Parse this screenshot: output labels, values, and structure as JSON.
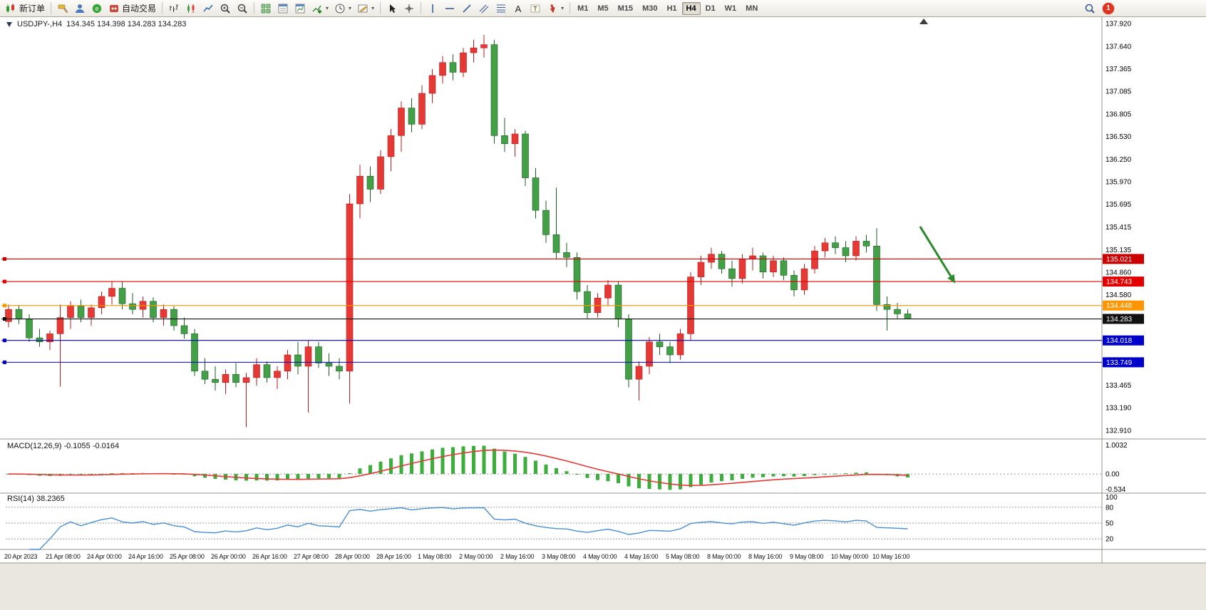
{
  "toolbar": {
    "groups": [
      [
        {
          "name": "new-order",
          "label": "新订单"
        }
      ],
      [
        {
          "name": "mql-wizard"
        },
        {
          "name": "support"
        },
        {
          "name": "community"
        },
        {
          "name": "autotrading",
          "label": "自动交易"
        }
      ],
      [
        {
          "name": "bar-chart"
        },
        {
          "name": "candlestick-chart"
        },
        {
          "name": "line-chart"
        },
        {
          "name": "zoom-in"
        },
        {
          "name": "zoom-out"
        }
      ],
      [
        {
          "name": "tile-windows"
        },
        {
          "name": "data-window"
        },
        {
          "name": "navigator"
        },
        {
          "name": "indicators",
          "dropdown": true
        },
        {
          "name": "periods",
          "dropdown": true
        },
        {
          "name": "templates",
          "dropdown": true
        }
      ],
      [
        {
          "name": "cursor"
        },
        {
          "name": "crosshair"
        }
      ],
      [
        {
          "name": "vertical-line"
        },
        {
          "name": "horizontal-line"
        },
        {
          "name": "trendline"
        },
        {
          "name": "equidistant-channel"
        },
        {
          "name": "fibonacci"
        },
        {
          "name": "text"
        },
        {
          "name": "text-label"
        },
        {
          "name": "arrows",
          "dropdown": true
        }
      ]
    ],
    "timeframes": [
      "M1",
      "M5",
      "M15",
      "M30",
      "H1",
      "H4",
      "D1",
      "W1",
      "MN"
    ],
    "active_timeframe": "H4",
    "notification_count": "1"
  },
  "chart": {
    "symbol_label": "USDJPY-,H4",
    "ohlc_values": "134.345 134.398 134.283 134.283"
  },
  "chart_data": {
    "type": "candlestick",
    "symbol": "USDJPY",
    "timeframe": "H4",
    "color_convention": "red = bullish, green = bearish",
    "up_color": "#e53935",
    "down_color": "#43a047",
    "up_stroke": "#b71c1c",
    "down_stroke": "#1b5e20",
    "price_axis_labels": [
      "137.920",
      "137.640",
      "137.365",
      "137.085",
      "136.805",
      "136.530",
      "136.250",
      "135.970",
      "135.695",
      "135.415",
      "135.135",
      "134.860",
      "134.580",
      "134.305",
      "134.025",
      "133.745",
      "133.465",
      "133.190",
      "132.910"
    ],
    "time_axis_labels": [
      "20 Apr 2023",
      "21 Apr 08:00",
      "24 Apr 00:00",
      "24 Apr 16:00",
      "25 Apr 08:00",
      "26 Apr 00:00",
      "26 Apr 16:00",
      "27 Apr 08:00",
      "28 Apr 00:00",
      "28 Apr 16:00",
      "1 May 08:00",
      "2 May 00:00",
      "2 May 16:00",
      "3 May 08:00",
      "4 May 00:00",
      "4 May 16:00",
      "5 May 08:00",
      "8 May 00:00",
      "8 May 16:00",
      "9 May 08:00",
      "10 May 00:00",
      "10 May 16:00"
    ],
    "candles_ohlc": [
      [
        134.25,
        134.46,
        134.18,
        134.4
      ],
      [
        134.4,
        134.45,
        134.22,
        134.28
      ],
      [
        134.28,
        134.34,
        134.0,
        134.05
      ],
      [
        134.05,
        134.16,
        133.94,
        134.0
      ],
      [
        134.0,
        134.14,
        133.9,
        134.1
      ],
      [
        134.1,
        134.46,
        133.45,
        134.3
      ],
      [
        134.3,
        134.5,
        134.16,
        134.44
      ],
      [
        134.44,
        134.52,
        134.24,
        134.3
      ],
      [
        134.3,
        134.46,
        134.2,
        134.42
      ],
      [
        134.42,
        134.62,
        134.34,
        134.56
      ],
      [
        134.56,
        134.75,
        134.46,
        134.66
      ],
      [
        134.66,
        134.74,
        134.4,
        134.47
      ],
      [
        134.47,
        134.6,
        134.34,
        134.4
      ],
      [
        134.4,
        134.56,
        134.3,
        134.5
      ],
      [
        134.5,
        134.55,
        134.24,
        134.3
      ],
      [
        134.3,
        134.46,
        134.2,
        134.4
      ],
      [
        134.4,
        134.44,
        134.14,
        134.2
      ],
      [
        134.2,
        134.3,
        134.04,
        134.1
      ],
      [
        134.1,
        134.16,
        133.58,
        133.64
      ],
      [
        133.64,
        133.8,
        133.48,
        133.54
      ],
      [
        133.54,
        133.7,
        133.4,
        133.5
      ],
      [
        133.5,
        133.66,
        133.36,
        133.6
      ],
      [
        133.6,
        133.74,
        133.44,
        133.5
      ],
      [
        133.5,
        133.62,
        132.95,
        133.56
      ],
      [
        133.56,
        133.8,
        133.46,
        133.72
      ],
      [
        133.72,
        133.76,
        133.5,
        133.56
      ],
      [
        133.56,
        133.7,
        133.42,
        133.64
      ],
      [
        133.64,
        133.9,
        133.54,
        133.84
      ],
      [
        133.84,
        134.0,
        133.6,
        133.7
      ],
      [
        133.7,
        134.02,
        133.13,
        133.94
      ],
      [
        133.94,
        134.0,
        133.68,
        133.74
      ],
      [
        133.74,
        133.86,
        133.58,
        133.7
      ],
      [
        133.7,
        133.8,
        133.54,
        133.64
      ],
      [
        133.64,
        135.82,
        133.24,
        135.7
      ],
      [
        135.7,
        136.18,
        135.52,
        136.04
      ],
      [
        136.04,
        136.16,
        135.72,
        135.88
      ],
      [
        135.88,
        136.36,
        135.82,
        136.28
      ],
      [
        136.28,
        136.62,
        136.1,
        136.54
      ],
      [
        136.54,
        136.96,
        136.34,
        136.88
      ],
      [
        136.88,
        137.0,
        136.58,
        136.68
      ],
      [
        136.68,
        137.16,
        136.62,
        137.06
      ],
      [
        137.06,
        137.36,
        136.94,
        137.28
      ],
      [
        137.28,
        137.52,
        137.18,
        137.44
      ],
      [
        137.44,
        137.54,
        137.22,
        137.32
      ],
      [
        137.32,
        137.62,
        137.26,
        137.56
      ],
      [
        137.56,
        137.72,
        137.44,
        137.62
      ],
      [
        137.62,
        137.78,
        137.5,
        137.66
      ],
      [
        137.66,
        137.72,
        136.44,
        136.54
      ],
      [
        136.54,
        136.76,
        136.34,
        136.44
      ],
      [
        136.44,
        136.62,
        136.28,
        136.56
      ],
      [
        136.56,
        136.6,
        135.92,
        136.02
      ],
      [
        136.02,
        136.14,
        135.52,
        135.62
      ],
      [
        135.62,
        135.74,
        135.22,
        135.32
      ],
      [
        135.32,
        135.9,
        135.02,
        135.1
      ],
      [
        135.1,
        135.22,
        134.92,
        135.04
      ],
      [
        135.04,
        135.1,
        134.52,
        134.62
      ],
      [
        134.62,
        134.7,
        134.28,
        134.36
      ],
      [
        134.36,
        134.6,
        134.3,
        134.54
      ],
      [
        134.54,
        134.76,
        134.44,
        134.7
      ],
      [
        134.7,
        134.74,
        134.18,
        134.28
      ],
      [
        134.28,
        134.34,
        133.44,
        133.54
      ],
      [
        133.54,
        133.76,
        133.28,
        133.7
      ],
      [
        133.7,
        134.06,
        133.6,
        134.0
      ],
      [
        134.0,
        134.1,
        133.84,
        133.94
      ],
      [
        133.94,
        134.0,
        133.74,
        133.84
      ],
      [
        133.84,
        134.16,
        133.78,
        134.1
      ],
      [
        134.1,
        134.86,
        134.02,
        134.8
      ],
      [
        134.8,
        135.06,
        134.7,
        134.98
      ],
      [
        134.98,
        135.16,
        134.9,
        135.08
      ],
      [
        135.08,
        135.12,
        134.84,
        134.9
      ],
      [
        134.9,
        135.0,
        134.68,
        134.78
      ],
      [
        134.78,
        135.08,
        134.72,
        135.02
      ],
      [
        135.02,
        135.16,
        134.88,
        135.06
      ],
      [
        135.06,
        135.1,
        134.78,
        134.86
      ],
      [
        134.86,
        135.06,
        134.8,
        135.0
      ],
      [
        135.0,
        135.04,
        134.76,
        134.82
      ],
      [
        134.82,
        134.88,
        134.56,
        134.64
      ],
      [
        134.64,
        134.96,
        134.58,
        134.9
      ],
      [
        134.9,
        135.18,
        134.84,
        135.12
      ],
      [
        135.12,
        135.28,
        135.04,
        135.22
      ],
      [
        135.22,
        135.3,
        135.08,
        135.16
      ],
      [
        135.16,
        135.24,
        134.98,
        135.06
      ],
      [
        135.06,
        135.3,
        135.0,
        135.24
      ],
      [
        135.24,
        135.32,
        135.1,
        135.18
      ],
      [
        135.18,
        135.4,
        134.38,
        134.46
      ],
      [
        134.46,
        134.56,
        134.14,
        134.4
      ],
      [
        134.4,
        134.48,
        134.28,
        134.345
      ],
      [
        134.345,
        134.398,
        134.283,
        134.283
      ]
    ],
    "horizontal_lines": [
      {
        "price": 135.021,
        "label": "135.021",
        "color": "#cc0000"
      },
      {
        "price": 134.743,
        "label": "134.743",
        "color": "#e30000"
      },
      {
        "price": 134.448,
        "label": "134.448",
        "color": "#ff9500"
      },
      {
        "price": 134.283,
        "label": "134.283",
        "color": "#111111"
      },
      {
        "price": 134.018,
        "label": "134.018",
        "color": "#0000cc"
      },
      {
        "price": 133.749,
        "label": "133.749",
        "color": "#0000cc"
      }
    ],
    "annotation_arrow": {
      "from_index": 88.2,
      "from_price": 135.42,
      "to_index": 91.6,
      "to_price": 134.72,
      "color": "#2c8a2c"
    },
    "indicators": {
      "macd": {
        "label": "MACD(12,26,9) -0.1055 -0.0164",
        "params": [
          12,
          26,
          9
        ],
        "value": -0.1055,
        "signal_value": -0.0164,
        "axis_labels": [
          "1.0032",
          "0.00",
          "-0.534"
        ],
        "histogram_color": "#3cae3c",
        "signal_color": "#e53935"
      },
      "rsi": {
        "label": "RSI(14) 38.2365",
        "period": 14,
        "value": 38.2365,
        "axis_labels": [
          "100",
          "80",
          "50",
          "20"
        ],
        "levels": [
          80,
          50,
          20
        ],
        "line_color": "#4a8fd4"
      }
    }
  }
}
